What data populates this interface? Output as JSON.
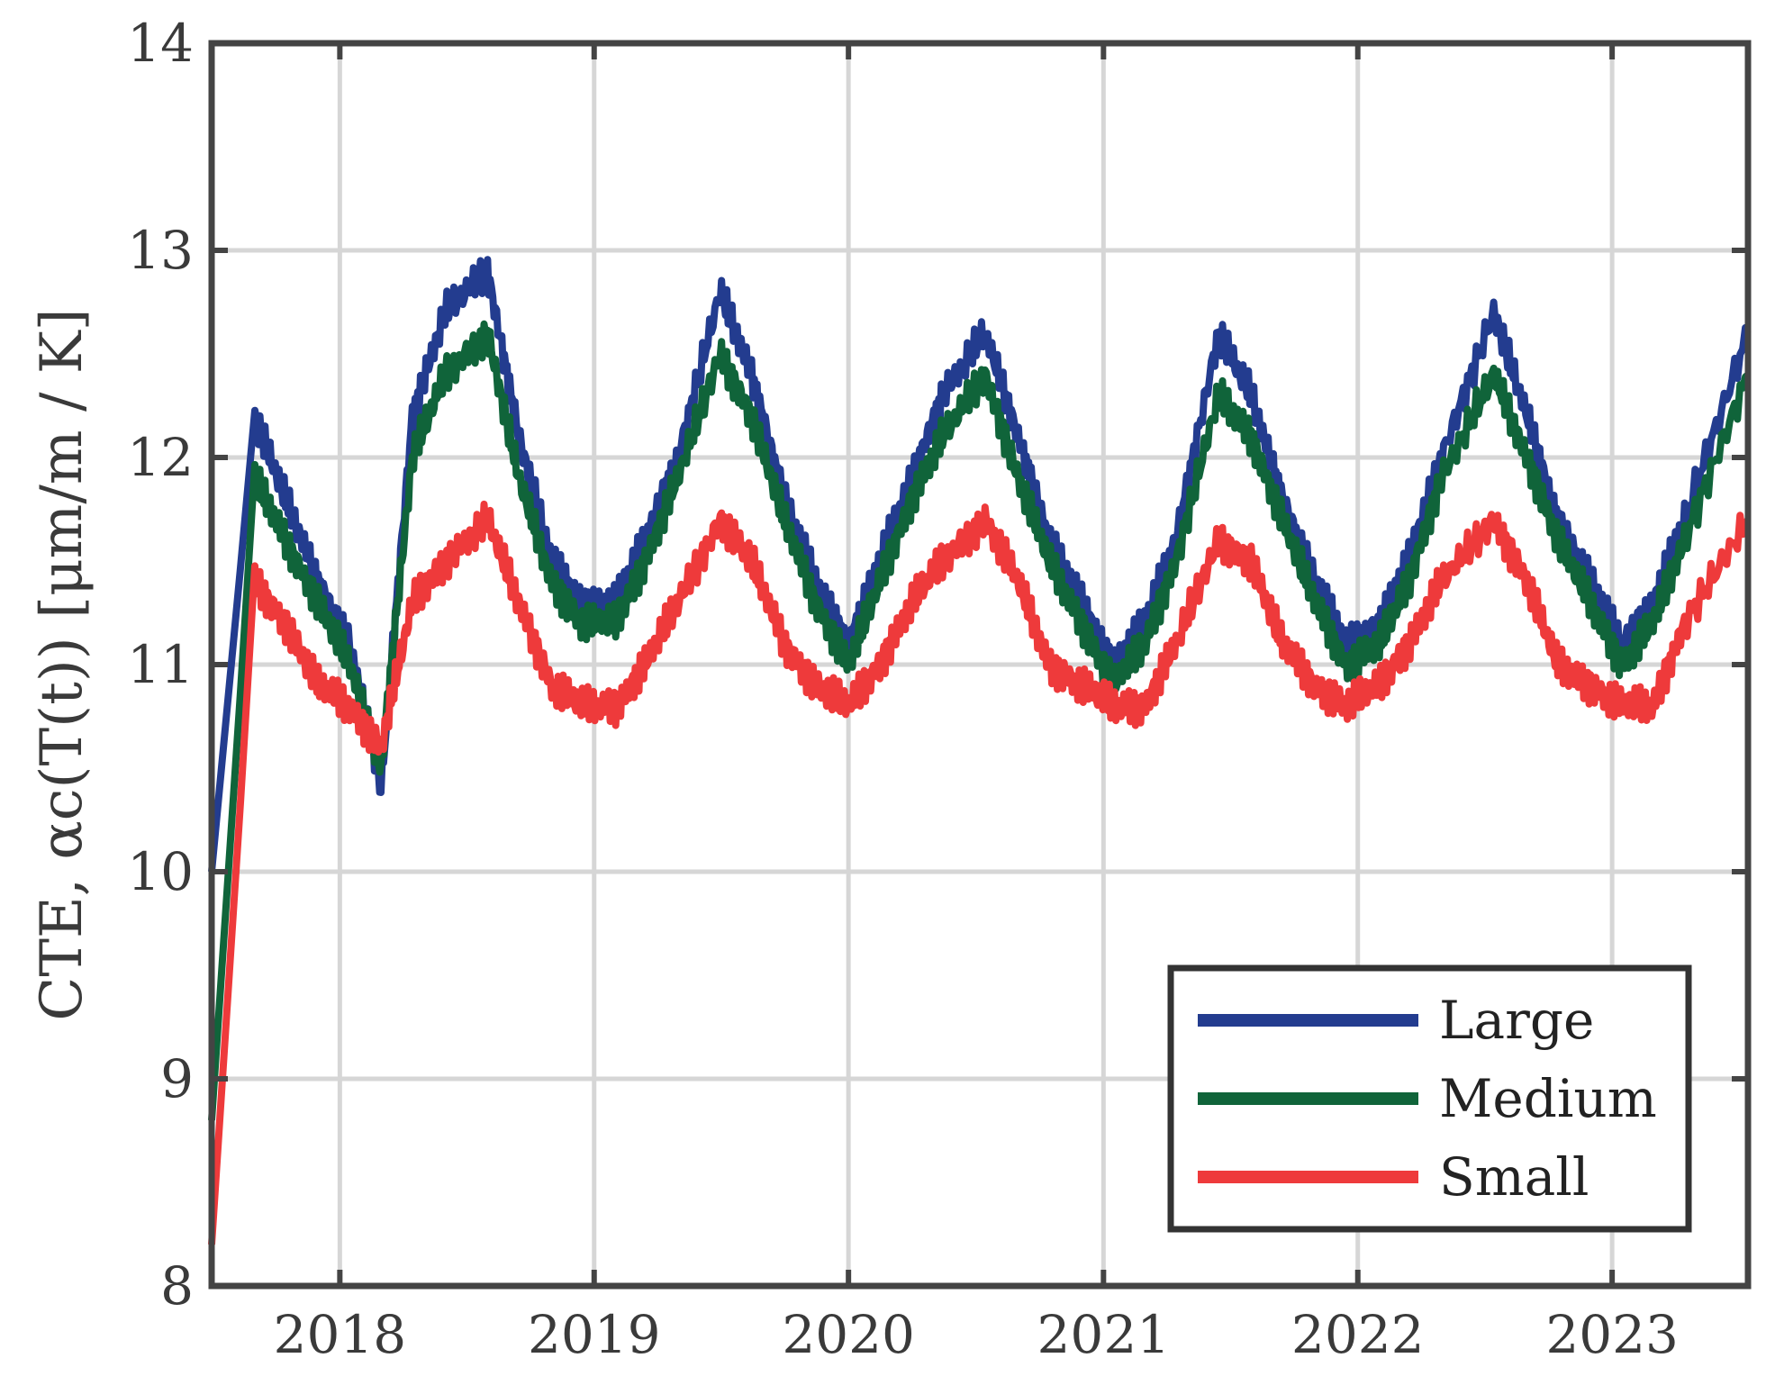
{
  "chart_data": {
    "type": "line",
    "title": "",
    "xlabel": "",
    "ylabel": "CTE, αc(T(t)) [μm/m / K]",
    "xlim": [
      "2017-07-01",
      "2023-07-15"
    ],
    "ylim": [
      8,
      14
    ],
    "x_ticks": [
      "2018",
      "2019",
      "2020",
      "2021",
      "2022",
      "2023"
    ],
    "y_ticks": [
      8,
      9,
      10,
      11,
      12,
      13,
      14
    ],
    "grid": true,
    "legend_position": "bottom-right",
    "series": [
      {
        "name": "Large",
        "color": "#233c8f",
        "x": [
          "2017-07-01",
          "2017-09-01",
          "2017-10-15",
          "2017-12-01",
          "2018-01-15",
          "2018-03-01",
          "2018-04-15",
          "2018-06-01",
          "2018-08-01",
          "2018-09-15",
          "2018-11-01",
          "2018-12-15",
          "2019-02-01",
          "2019-03-15",
          "2019-05-01",
          "2019-07-01",
          "2019-08-15",
          "2019-10-01",
          "2019-11-15",
          "2020-01-01",
          "2020-02-15",
          "2020-04-01",
          "2020-05-15",
          "2020-07-15",
          "2020-09-01",
          "2020-10-15",
          "2020-12-01",
          "2021-01-15",
          "2021-03-01",
          "2021-04-15",
          "2021-06-15",
          "2021-08-01",
          "2021-09-15",
          "2021-11-01",
          "2021-12-15",
          "2022-02-01",
          "2022-03-15",
          "2022-05-01",
          "2022-07-15",
          "2022-09-01",
          "2022-10-15",
          "2022-12-01",
          "2023-01-15",
          "2023-03-01",
          "2023-04-15",
          "2023-07-15"
        ],
        "values": [
          10.0,
          12.2,
          11.8,
          11.4,
          11.1,
          10.4,
          12.2,
          12.7,
          12.9,
          12.1,
          11.5,
          11.3,
          11.3,
          11.6,
          12.0,
          12.8,
          12.4,
          11.8,
          11.4,
          11.1,
          11.5,
          11.9,
          12.3,
          12.6,
          12.1,
          11.6,
          11.3,
          11.0,
          11.2,
          11.6,
          12.6,
          12.3,
          11.8,
          11.4,
          11.1,
          11.2,
          11.5,
          12.0,
          12.7,
          12.2,
          11.7,
          11.4,
          11.1,
          11.3,
          11.7,
          12.6
        ]
      },
      {
        "name": "Medium",
        "color": "#10643a",
        "x": [
          "2017-07-01",
          "2017-09-01",
          "2017-10-15",
          "2017-12-01",
          "2018-01-15",
          "2018-03-01",
          "2018-04-15",
          "2018-06-01",
          "2018-08-01",
          "2018-09-15",
          "2018-11-01",
          "2018-12-15",
          "2019-02-01",
          "2019-03-15",
          "2019-05-01",
          "2019-07-01",
          "2019-08-15",
          "2019-10-01",
          "2019-11-15",
          "2020-01-01",
          "2020-02-15",
          "2020-04-01",
          "2020-05-15",
          "2020-07-15",
          "2020-09-01",
          "2020-10-15",
          "2020-12-01",
          "2021-01-15",
          "2021-03-01",
          "2021-04-15",
          "2021-06-15",
          "2021-08-01",
          "2021-09-15",
          "2021-11-01",
          "2021-12-15",
          "2022-02-01",
          "2022-03-15",
          "2022-05-01",
          "2022-07-15",
          "2022-09-01",
          "2022-10-15",
          "2022-12-01",
          "2023-01-15",
          "2023-03-01",
          "2023-04-15",
          "2023-07-15"
        ],
        "values": [
          8.8,
          11.9,
          11.6,
          11.3,
          11.0,
          10.5,
          12.0,
          12.4,
          12.6,
          11.9,
          11.4,
          11.2,
          11.2,
          11.5,
          11.9,
          12.5,
          12.2,
          11.7,
          11.3,
          11.0,
          11.4,
          11.8,
          12.1,
          12.4,
          11.9,
          11.5,
          11.2,
          10.9,
          11.1,
          11.5,
          12.3,
          12.1,
          11.7,
          11.3,
          11.0,
          11.1,
          11.4,
          11.9,
          12.4,
          12.0,
          11.6,
          11.3,
          11.0,
          11.2,
          11.6,
          12.4
        ]
      },
      {
        "name": "Small",
        "color": "#ee3a3b",
        "x": [
          "2017-07-01",
          "2017-09-01",
          "2017-10-15",
          "2017-12-01",
          "2018-01-15",
          "2018-03-01",
          "2018-04-15",
          "2018-06-01",
          "2018-08-01",
          "2018-09-15",
          "2018-11-01",
          "2018-12-15",
          "2019-02-01",
          "2019-03-15",
          "2019-05-01",
          "2019-07-01",
          "2019-08-15",
          "2019-10-01",
          "2019-11-15",
          "2020-01-01",
          "2020-02-15",
          "2020-04-01",
          "2020-05-15",
          "2020-07-15",
          "2020-09-01",
          "2020-10-15",
          "2020-12-01",
          "2021-01-15",
          "2021-03-01",
          "2021-04-15",
          "2021-06-15",
          "2021-08-01",
          "2021-09-15",
          "2021-11-01",
          "2021-12-15",
          "2022-02-01",
          "2022-03-15",
          "2022-05-01",
          "2022-07-15",
          "2022-09-01",
          "2022-10-15",
          "2022-12-01",
          "2023-01-15",
          "2023-03-01",
          "2023-04-15",
          "2023-07-15"
        ],
        "values": [
          8.2,
          11.4,
          11.2,
          10.9,
          10.8,
          10.6,
          11.3,
          11.5,
          11.7,
          11.3,
          10.9,
          10.8,
          10.8,
          11.0,
          11.3,
          11.7,
          11.5,
          11.1,
          10.9,
          10.8,
          11.0,
          11.3,
          11.5,
          11.7,
          11.4,
          11.0,
          10.9,
          10.8,
          10.8,
          11.1,
          11.6,
          11.5,
          11.1,
          10.9,
          10.8,
          10.9,
          11.1,
          11.4,
          11.7,
          11.4,
          11.0,
          10.9,
          10.8,
          10.8,
          11.2,
          11.7
        ]
      }
    ]
  }
}
